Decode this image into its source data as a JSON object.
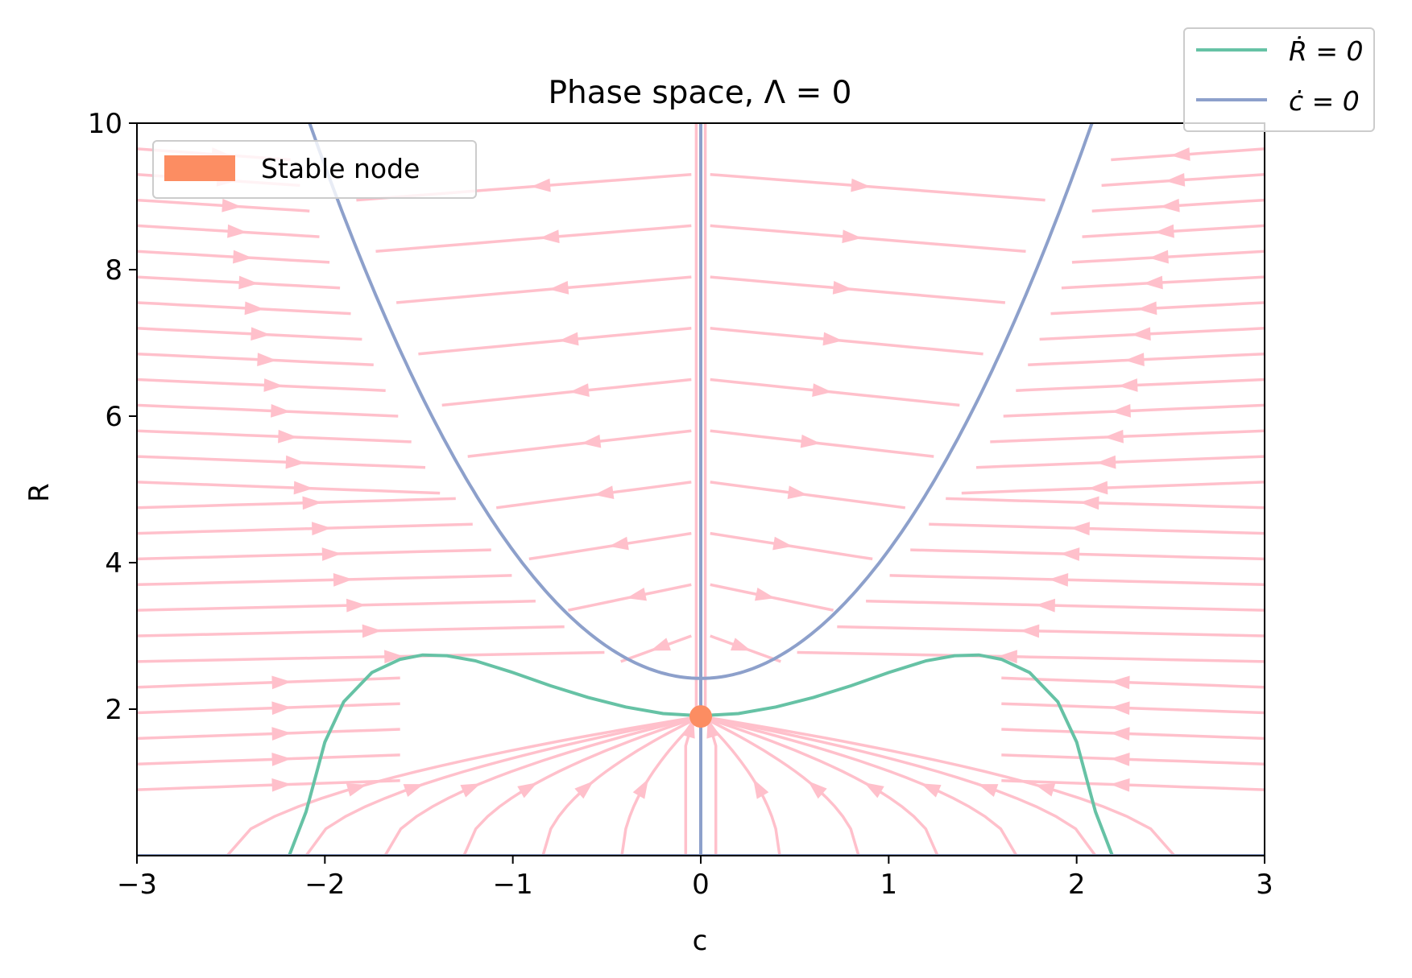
{
  "chart_data": {
    "type": "line",
    "title": "Phase space,  Λ = 0",
    "xlabel": "c",
    "ylabel": "R",
    "xlim": [
      -3,
      3
    ],
    "ylim": [
      0,
      10
    ],
    "xticks": [
      -3,
      -2,
      -1,
      0,
      1,
      2,
      3
    ],
    "xtick_labels": [
      "−3",
      "−2",
      "−1",
      "0",
      "1",
      "2",
      "3"
    ],
    "yticks": [
      2,
      4,
      6,
      8,
      10
    ],
    "ytick_labels": [
      "2",
      "4",
      "6",
      "8",
      "10"
    ],
    "grid": false,
    "legend_top_right": {
      "placement": "outside top-right",
      "entries": [
        {
          "label": "Ṙ = 0",
          "color": "#66c2a5"
        },
        {
          "label": "ċ = 0",
          "color": "#8da0cb"
        }
      ]
    },
    "legend_top_left": {
      "placement": "upper left",
      "entries": [
        {
          "label": "Stable node",
          "color": "#fc8d62"
        }
      ]
    },
    "series": [
      {
        "name": "Ṙ = 0",
        "color": "#66c2a5",
        "points": [
          [
            -2.19,
            0.0
          ],
          [
            -2.1,
            0.6
          ],
          [
            -2.0,
            1.55
          ],
          [
            -1.9,
            2.1
          ],
          [
            -1.75,
            2.5
          ],
          [
            -1.6,
            2.68
          ],
          [
            -1.48,
            2.74
          ],
          [
            -1.35,
            2.73
          ],
          [
            -1.2,
            2.66
          ],
          [
            -1.0,
            2.5
          ],
          [
            -0.8,
            2.32
          ],
          [
            -0.6,
            2.16
          ],
          [
            -0.4,
            2.03
          ],
          [
            -0.2,
            1.94
          ],
          [
            0.0,
            1.91
          ],
          [
            0.2,
            1.94
          ],
          [
            0.4,
            2.03
          ],
          [
            0.6,
            2.16
          ],
          [
            0.8,
            2.32
          ],
          [
            1.0,
            2.5
          ],
          [
            1.2,
            2.66
          ],
          [
            1.35,
            2.73
          ],
          [
            1.48,
            2.74
          ],
          [
            1.6,
            2.68
          ],
          [
            1.75,
            2.5
          ],
          [
            1.9,
            2.1
          ],
          [
            2.0,
            1.55
          ],
          [
            2.1,
            0.6
          ],
          [
            2.19,
            0.0
          ]
        ]
      },
      {
        "name": "ċ = 0",
        "color": "#8da0cb",
        "parabola": {
          "vertex_R": 2.42,
          "coefficient": 1.75,
          "c_range": [
            -2.09,
            2.09
          ]
        },
        "vertical_line_c": 0
      }
    ],
    "stable_node": {
      "c": 0,
      "R": 1.9,
      "color": "#fc8d62"
    },
    "streamlines_color": "#ffc0cb"
  }
}
